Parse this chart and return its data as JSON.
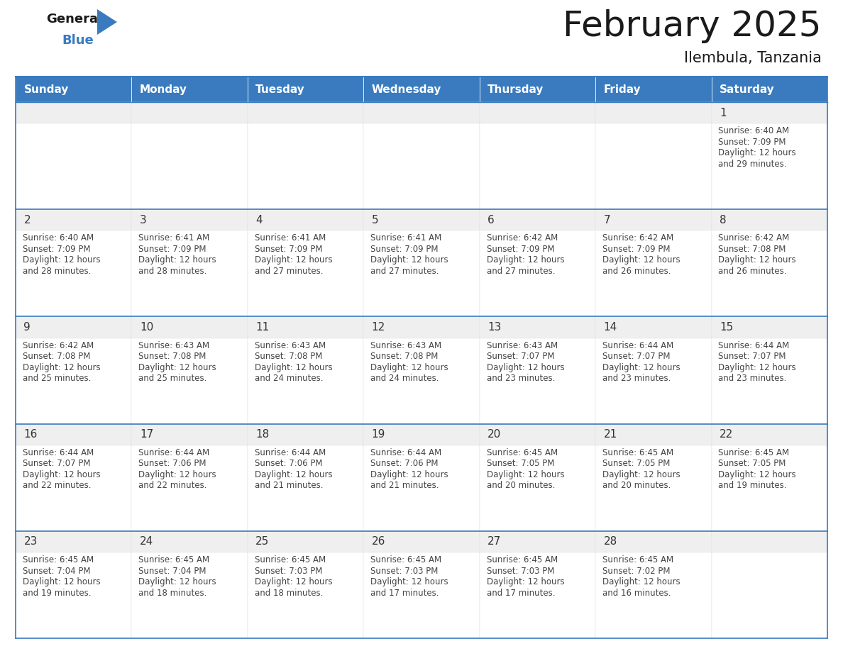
{
  "title": "February 2025",
  "subtitle": "Ilembula, Tanzania",
  "header_bg": "#3a7bbf",
  "header_text": "#ffffff",
  "cell_bg_gray": "#efefef",
  "cell_bg_white": "#ffffff",
  "border_color": "#3a7bbf",
  "day_names": [
    "Sunday",
    "Monday",
    "Tuesday",
    "Wednesday",
    "Thursday",
    "Friday",
    "Saturday"
  ],
  "title_color": "#1a1a1a",
  "subtitle_color": "#1a1a1a",
  "day_num_color": "#333333",
  "info_color": "#444444",
  "weeks": [
    [
      {
        "day": null
      },
      {
        "day": null
      },
      {
        "day": null
      },
      {
        "day": null
      },
      {
        "day": null
      },
      {
        "day": null
      },
      {
        "day": 1,
        "sunrise": "6:40 AM",
        "sunset": "7:09 PM",
        "daylight_min": "29 minutes."
      }
    ],
    [
      {
        "day": 2,
        "sunrise": "6:40 AM",
        "sunset": "7:09 PM",
        "daylight_min": "28 minutes."
      },
      {
        "day": 3,
        "sunrise": "6:41 AM",
        "sunset": "7:09 PM",
        "daylight_min": "28 minutes."
      },
      {
        "day": 4,
        "sunrise": "6:41 AM",
        "sunset": "7:09 PM",
        "daylight_min": "27 minutes."
      },
      {
        "day": 5,
        "sunrise": "6:41 AM",
        "sunset": "7:09 PM",
        "daylight_min": "27 minutes."
      },
      {
        "day": 6,
        "sunrise": "6:42 AM",
        "sunset": "7:09 PM",
        "daylight_min": "27 minutes."
      },
      {
        "day": 7,
        "sunrise": "6:42 AM",
        "sunset": "7:09 PM",
        "daylight_min": "26 minutes."
      },
      {
        "day": 8,
        "sunrise": "6:42 AM",
        "sunset": "7:08 PM",
        "daylight_min": "26 minutes."
      }
    ],
    [
      {
        "day": 9,
        "sunrise": "6:42 AM",
        "sunset": "7:08 PM",
        "daylight_min": "25 minutes."
      },
      {
        "day": 10,
        "sunrise": "6:43 AM",
        "sunset": "7:08 PM",
        "daylight_min": "25 minutes."
      },
      {
        "day": 11,
        "sunrise": "6:43 AM",
        "sunset": "7:08 PM",
        "daylight_min": "24 minutes."
      },
      {
        "day": 12,
        "sunrise": "6:43 AM",
        "sunset": "7:08 PM",
        "daylight_min": "24 minutes."
      },
      {
        "day": 13,
        "sunrise": "6:43 AM",
        "sunset": "7:07 PM",
        "daylight_min": "23 minutes."
      },
      {
        "day": 14,
        "sunrise": "6:44 AM",
        "sunset": "7:07 PM",
        "daylight_min": "23 minutes."
      },
      {
        "day": 15,
        "sunrise": "6:44 AM",
        "sunset": "7:07 PM",
        "daylight_min": "23 minutes."
      }
    ],
    [
      {
        "day": 16,
        "sunrise": "6:44 AM",
        "sunset": "7:07 PM",
        "daylight_min": "22 minutes."
      },
      {
        "day": 17,
        "sunrise": "6:44 AM",
        "sunset": "7:06 PM",
        "daylight_min": "22 minutes."
      },
      {
        "day": 18,
        "sunrise": "6:44 AM",
        "sunset": "7:06 PM",
        "daylight_min": "21 minutes."
      },
      {
        "day": 19,
        "sunrise": "6:44 AM",
        "sunset": "7:06 PM",
        "daylight_min": "21 minutes."
      },
      {
        "day": 20,
        "sunrise": "6:45 AM",
        "sunset": "7:05 PM",
        "daylight_min": "20 minutes."
      },
      {
        "day": 21,
        "sunrise": "6:45 AM",
        "sunset": "7:05 PM",
        "daylight_min": "20 minutes."
      },
      {
        "day": 22,
        "sunrise": "6:45 AM",
        "sunset": "7:05 PM",
        "daylight_min": "19 minutes."
      }
    ],
    [
      {
        "day": 23,
        "sunrise": "6:45 AM",
        "sunset": "7:04 PM",
        "daylight_min": "19 minutes."
      },
      {
        "day": 24,
        "sunrise": "6:45 AM",
        "sunset": "7:04 PM",
        "daylight_min": "18 minutes."
      },
      {
        "day": 25,
        "sunrise": "6:45 AM",
        "sunset": "7:03 PM",
        "daylight_min": "18 minutes."
      },
      {
        "day": 26,
        "sunrise": "6:45 AM",
        "sunset": "7:03 PM",
        "daylight_min": "17 minutes."
      },
      {
        "day": 27,
        "sunrise": "6:45 AM",
        "sunset": "7:03 PM",
        "daylight_min": "17 minutes."
      },
      {
        "day": 28,
        "sunrise": "6:45 AM",
        "sunset": "7:02 PM",
        "daylight_min": "16 minutes."
      },
      {
        "day": null
      }
    ]
  ]
}
